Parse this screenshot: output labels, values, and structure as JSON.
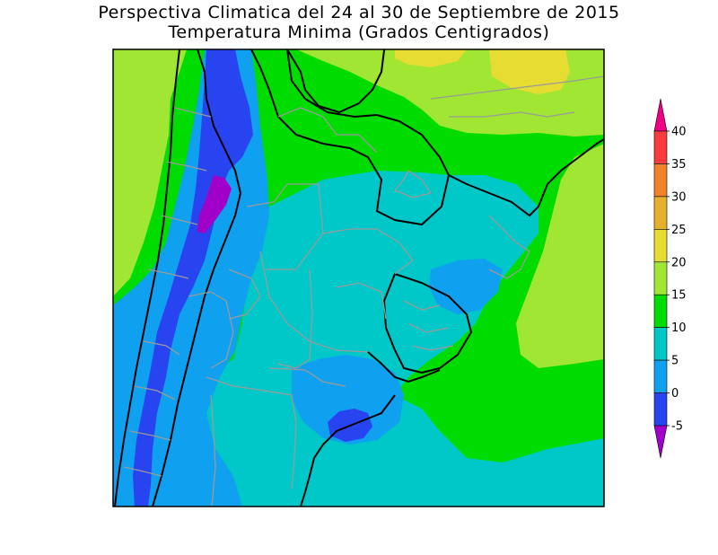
{
  "title": {
    "line1": "Perspectiva Climatica del 24 al 30 de Septiembre de 2015",
    "line2": "Temperatura Minima (Grados Centigrados)"
  },
  "legend": {
    "ticks": [
      "40",
      "35",
      "30",
      "25",
      "20",
      "15",
      "10",
      "5",
      "0",
      "-5"
    ],
    "bands": [
      {
        "range": "< -5",
        "color": "#a000c8"
      },
      {
        "range": "-5 to 0",
        "color": "#2844f0"
      },
      {
        "range": "0 to 5",
        "color": "#0fa0f0"
      },
      {
        "range": "5 to 10",
        "color": "#00c8c8"
      },
      {
        "range": "10 to 15",
        "color": "#00dc00"
      },
      {
        "range": "15 to 20",
        "color": "#a0e632"
      },
      {
        "range": "20 to 25",
        "color": "#e6dc32"
      },
      {
        "range": "25 to 30",
        "color": "#e6af2d"
      },
      {
        "range": "30 to 35",
        "color": "#f08228"
      },
      {
        "range": "35 to 40",
        "color": "#fa3c3c"
      },
      {
        "range": "> 40",
        "color": "#f00082"
      }
    ]
  }
}
